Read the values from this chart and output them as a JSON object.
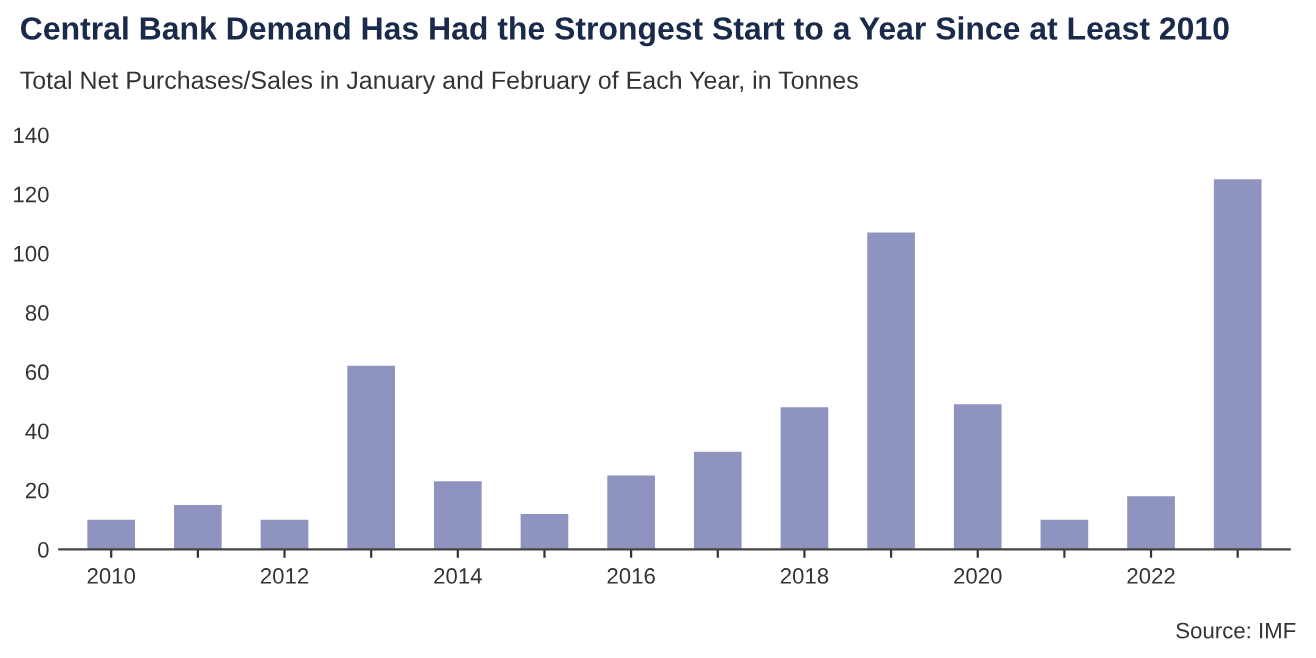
{
  "chart_data": {
    "type": "bar",
    "title": "Central Bank Demand Has Had the Strongest Start to a Year Since at Least 2010",
    "subtitle": "Total Net Purchases/Sales in January and February of Each Year, in Tonnes",
    "categories": [
      "2010",
      null,
      "2012",
      null,
      "2014",
      null,
      "2016",
      null,
      "2018",
      null,
      "2020",
      null,
      "2022",
      null
    ],
    "values": [
      10,
      15,
      10,
      62,
      23,
      12,
      25,
      33,
      48,
      107,
      49,
      10,
      18,
      125
    ],
    "color": "#8f93bf",
    "ylim": [
      0,
      140
    ],
    "yticks": [
      0,
      20,
      40,
      60,
      80,
      100,
      120,
      140
    ],
    "grid": false,
    "legend": false,
    "annotations": [
      "Source: IMF"
    ]
  }
}
